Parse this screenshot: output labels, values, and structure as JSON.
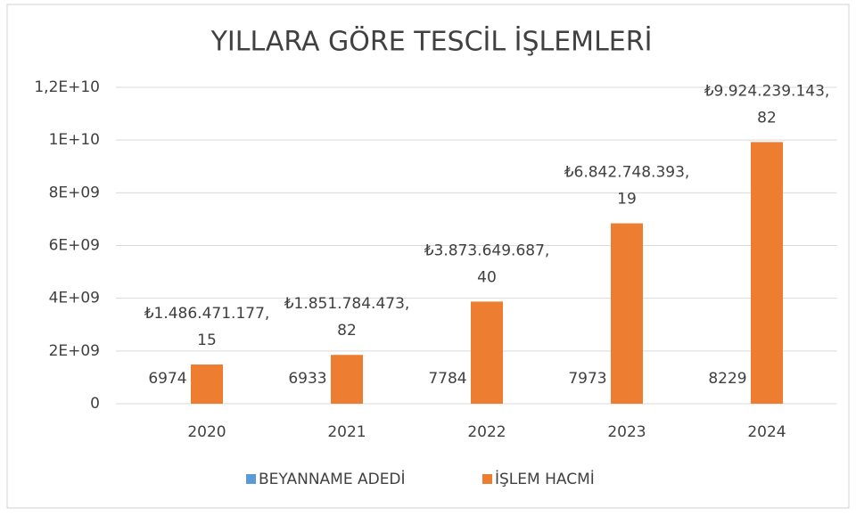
{
  "chart_data": {
    "type": "bar",
    "title": "YILLARA GÖRE TESCİL İŞLEMLERİ",
    "categories": [
      "2020",
      "2021",
      "2022",
      "2023",
      "2024"
    ],
    "series": [
      {
        "name": "BEYANNAME ADEDİ",
        "color": "#5b9bd5",
        "values": [
          6974,
          6933,
          7784,
          7973,
          8229
        ]
      },
      {
        "name": "İŞLEM HACMİ",
        "color": "#ed7d31",
        "values": [
          1486471177.15,
          1851784473.82,
          3873649687.4,
          6842748393.19,
          9924239143.82
        ],
        "value_labels": [
          "₺1.486.471.177,15",
          "₺1.851.784.473,82",
          "₺3.873.649.687,40",
          "₺6.842.748.393,19",
          "₺9.924.239.143,82"
        ]
      }
    ],
    "ylim": [
      0,
      12000000000
    ],
    "yticks": [
      0,
      {
        "value": 2000000000,
        "label": "2E+09"
      },
      {
        "value": 4000000000,
        "label": "4E+09"
      },
      {
        "value": 6000000000,
        "label": "6E+09"
      },
      {
        "value": 8000000000,
        "label": "8E+09"
      },
      {
        "value": 10000000000,
        "label": "1E+10"
      },
      {
        "value": 12000000000,
        "label": "1,2E+10"
      }
    ],
    "grid": true,
    "legend": "bottom"
  }
}
